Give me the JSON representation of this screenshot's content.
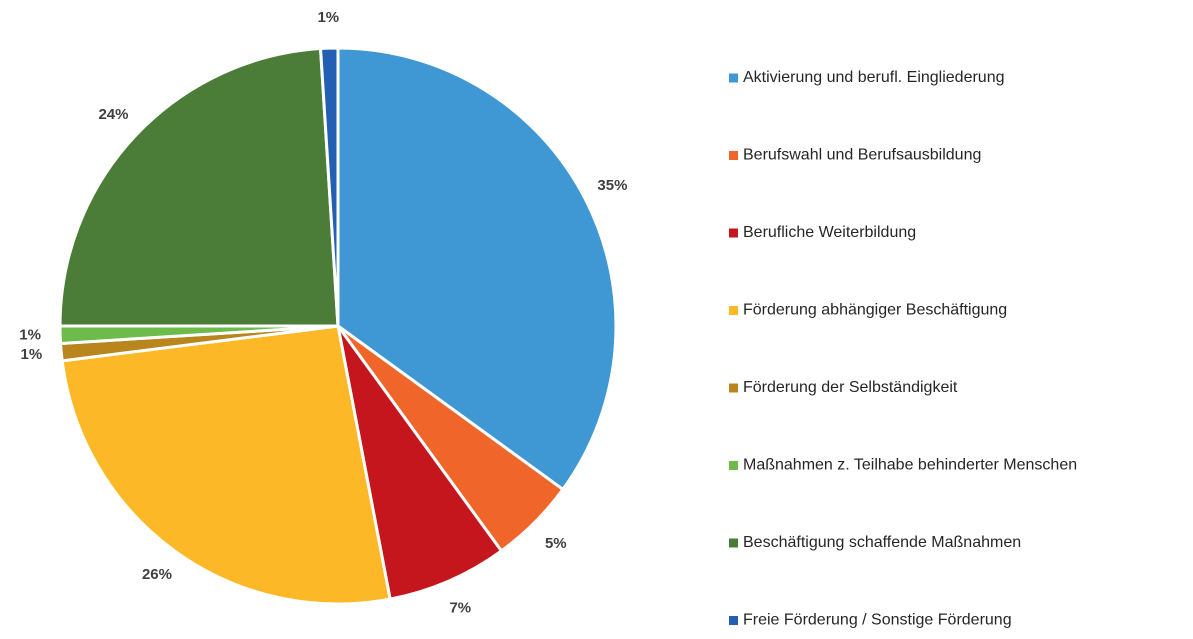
{
  "chart_data": {
    "type": "pie",
    "categories": [
      "Aktivierung und berufl. Eingliederung",
      "Berufswahl und Berufsausbildung",
      "Berufliche Weiterbildung",
      "Förderung abhängiger Beschäftigung",
      "Förderung der Selbständigkeit",
      "Maßnahmen z. Teilhabe behinderter Menschen",
      "Beschäftigung schaffende Maßnahmen",
      "Freie Förderung / Sonstige Förderung"
    ],
    "values": [
      35,
      5,
      7,
      26,
      1,
      1,
      24,
      1
    ],
    "value_labels": [
      "35%",
      "5%",
      "7%",
      "26%",
      "1%",
      "1%",
      "24%",
      "1%"
    ],
    "colors": [
      "#3f97d3",
      "#f0652a",
      "#c5161d",
      "#fcb827",
      "#b8861d",
      "#6dbb4b",
      "#4c7d38",
      "#2360b4"
    ],
    "legend": "right"
  }
}
